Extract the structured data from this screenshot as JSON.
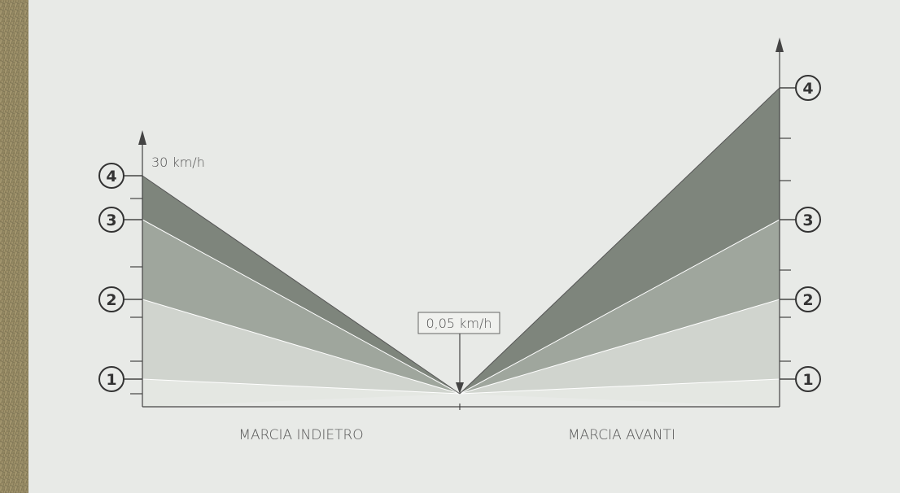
{
  "diagram": {
    "max_speed_label": "30 km/h",
    "min_speed_label": "0,05 km/h",
    "reverse_label": "MARCIA INDIETRO",
    "forward_label": "MARCIA AVANTI",
    "reverse_gears": [
      "1",
      "2",
      "3",
      "4"
    ],
    "forward_gears": [
      "1",
      "2",
      "3",
      "4"
    ]
  }
}
